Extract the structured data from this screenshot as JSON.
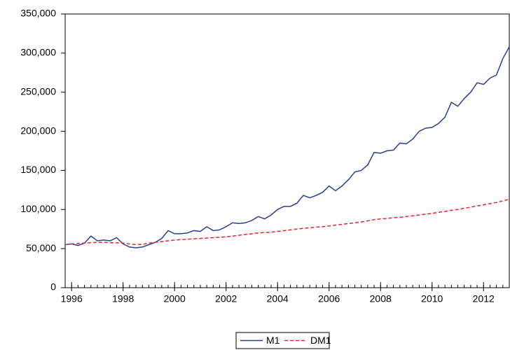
{
  "chart_data": {
    "type": "line",
    "x": [
      1995.75,
      1996.0,
      1996.25,
      1996.5,
      1996.75,
      1997.0,
      1997.25,
      1997.5,
      1997.75,
      1998.0,
      1998.25,
      1998.5,
      1998.75,
      1999.0,
      1999.25,
      1999.5,
      1999.75,
      2000.0,
      2000.25,
      2000.5,
      2000.75,
      2001.0,
      2001.25,
      2001.5,
      2001.75,
      2002.0,
      2002.25,
      2002.5,
      2002.75,
      2003.0,
      2003.25,
      2003.5,
      2003.75,
      2004.0,
      2004.25,
      2004.5,
      2004.75,
      2005.0,
      2005.25,
      2005.5,
      2005.75,
      2006.0,
      2006.25,
      2006.5,
      2006.75,
      2007.0,
      2007.25,
      2007.5,
      2007.75,
      2008.0,
      2008.25,
      2008.5,
      2008.75,
      2009.0,
      2009.25,
      2009.5,
      2009.75,
      2010.0,
      2010.25,
      2010.5,
      2010.75,
      2011.0,
      2011.25,
      2011.5,
      2011.75,
      2012.0,
      2012.25,
      2012.5,
      2012.75,
      2013.0
    ],
    "series": [
      {
        "name": "M1",
        "color": "#2b3f8f",
        "dash": false,
        "values": [
          55000,
          56000,
          54000,
          57000,
          66000,
          60000,
          61000,
          60000,
          64000,
          56000,
          52000,
          51000,
          52000,
          55000,
          58000,
          63000,
          73000,
          69000,
          69000,
          70000,
          73000,
          72000,
          78000,
          73000,
          74000,
          78000,
          83000,
          82000,
          83000,
          86000,
          91000,
          88000,
          93000,
          100000,
          104000,
          104000,
          108000,
          118000,
          115000,
          118000,
          122000,
          130000,
          124000,
          130000,
          138000,
          148000,
          150000,
          157000,
          173000,
          172000,
          175000,
          176000,
          185000,
          184000,
          190000,
          200000,
          204000,
          205000,
          210000,
          218000,
          237000,
          232000,
          242000,
          250000,
          262000,
          260000,
          268000,
          272000,
          293000,
          308000
        ]
      },
      {
        "name": "DM1",
        "color": "#e8262b",
        "dash": true,
        "values": [
          55000,
          56000,
          56500,
          57000,
          57500,
          58000,
          58000,
          57500,
          57500,
          57000,
          56000,
          55000,
          55500,
          57000,
          58000,
          59000,
          60000,
          61000,
          61500,
          62000,
          62500,
          63000,
          63500,
          64000,
          64500,
          65000,
          66000,
          67000,
          68000,
          69000,
          70000,
          70500,
          71000,
          72000,
          73000,
          74000,
          75000,
          76000,
          76500,
          77500,
          78000,
          79000,
          80000,
          81000,
          82000,
          83000,
          84000,
          85500,
          87000,
          88000,
          88500,
          89500,
          90000,
          91000,
          92000,
          93000,
          94000,
          95000,
          96500,
          97500,
          99000,
          100000,
          101500,
          103000,
          104500,
          106000,
          107500,
          109000,
          111000,
          113000
        ]
      }
    ],
    "xlim": [
      1995.75,
      2013.0
    ],
    "xticks": [
      1996,
      1998,
      2000,
      2002,
      2004,
      2006,
      2008,
      2010,
      2012
    ],
    "ylim": [
      0,
      350000
    ],
    "yticks": [
      0,
      {
        "value": 50000,
        "label": "50,000"
      },
      {
        "value": 100000,
        "label": "100,000"
      },
      {
        "value": 150000,
        "label": "150,000"
      },
      {
        "value": 200000,
        "label": "200,000"
      },
      {
        "value": 250000,
        "label": "250,000"
      },
      {
        "value": 300000,
        "label": "300,000"
      },
      {
        "value": 350000,
        "label": "350,000"
      }
    ],
    "grid": false,
    "legend": "bottom"
  }
}
